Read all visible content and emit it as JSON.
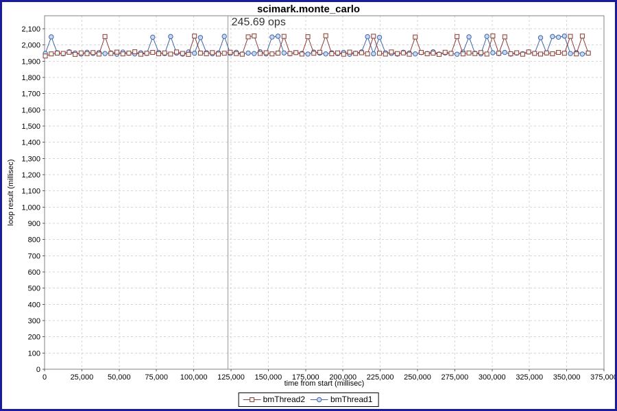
{
  "colors": {
    "frame_border": "#1b1b9e",
    "plot_border": "#808080",
    "grid": "#d6d6d6",
    "tick": "#555555",
    "annotation_line": "#999999",
    "text": "#000000"
  },
  "chart_data": {
    "type": "line",
    "title": "scimark.monte_carlo",
    "xlabel": "time from start (millisec)",
    "ylabel": "loop result (millisec)",
    "xlim": [
      0,
      375000
    ],
    "ylim": [
      0,
      2100
    ],
    "grid": true,
    "legend_position": "bottom",
    "annotation": {
      "text": "245.69 ops",
      "x": 123000
    },
    "x_ticks": {
      "values": [
        0,
        25000,
        50000,
        75000,
        100000,
        125000,
        150000,
        175000,
        200000,
        225000,
        250000,
        275000,
        300000,
        325000,
        350000,
        375000
      ],
      "labels": [
        "0",
        "25,000",
        "50,000",
        "75,000",
        "100,000",
        "125,000",
        "150,000",
        "175,000",
        "200,000",
        "225,000",
        "250,000",
        "275,000",
        "300,000",
        "325,000",
        "350,000",
        "375,000"
      ]
    },
    "y_ticks": {
      "values": [
        0,
        100,
        200,
        300,
        400,
        500,
        600,
        700,
        800,
        900,
        1000,
        1100,
        1200,
        1300,
        1400,
        1500,
        1600,
        1700,
        1800,
        1900,
        2000,
        2100
      ],
      "labels": [
        "0",
        "100",
        "200",
        "300",
        "400",
        "500",
        "600",
        "700",
        "800",
        "900",
        "1,000",
        "1,100",
        "1,200",
        "1,300",
        "1,400",
        "1,500",
        "1,600",
        "1,700",
        "1,800",
        "1,900",
        "2,000",
        "2,100"
      ]
    },
    "x": [
      500,
      4500,
      8500,
      12500,
      16500,
      20500,
      24500,
      28500,
      32500,
      36500,
      40500,
      44500,
      48500,
      52500,
      56500,
      60500,
      64500,
      68500,
      72500,
      76500,
      80500,
      84500,
      88500,
      92500,
      96500,
      100500,
      104500,
      108500,
      112500,
      116500,
      120500,
      124500,
      128500,
      132500,
      136500,
      140500,
      144500,
      148500,
      152500,
      156500,
      160500,
      164500,
      168500,
      172500,
      176500,
      180500,
      184500,
      188500,
      192500,
      196500,
      200500,
      204500,
      208500,
      212500,
      216500,
      220500,
      224500,
      228500,
      232500,
      236500,
      240500,
      244500,
      248500,
      252500,
      256500,
      260500,
      264500,
      268500,
      272500,
      276500,
      280500,
      284500,
      288500,
      292500,
      296500,
      300500,
      304500,
      308500,
      312500,
      316500,
      320500,
      324500,
      328500,
      332500,
      336500,
      340500,
      344500,
      348500,
      352500,
      356500,
      360500,
      364500
    ],
    "series": [
      {
        "name": "bmThread2",
        "marker": "square",
        "color": "#8e3b3b",
        "marker_fill": "#edf7ee",
        "values": [
          1932,
          1945,
          1950,
          1948,
          1955,
          1942,
          1951,
          1947,
          1953,
          1944,
          2052,
          1948,
          1956,
          1945,
          1950,
          1958,
          1943,
          1949,
          1954,
          1946,
          1951,
          1944,
          1957,
          1948,
          1942,
          2055,
          1950,
          1946,
          1953,
          1944,
          1949,
          1955,
          1947,
          1943,
          2050,
          2056,
          1948,
          1952,
          1945,
          1950,
          2053,
          1947,
          1953,
          1944,
          2051,
          1949,
          1955,
          2057,
          1946,
          1951,
          1943,
          1956,
          1948,
          1952,
          1945,
          2054,
          1949,
          1944,
          1957,
          1947,
          1951,
          1943,
          2049,
          1954,
          1946,
          1950,
          1942,
          1955,
          1948,
          2052,
          1945,
          1951,
          1947,
          1953,
          1944,
          2056,
          1949,
          2050,
          1946,
          1952,
          1943,
          1957,
          1948,
          1944,
          1951,
          1946,
          1954,
          1949,
          2053,
          1945,
          2055,
          1950
        ]
      },
      {
        "name": "bmThread1",
        "marker": "circle",
        "color": "#4263a8",
        "marker_fill": "#c5d9ef",
        "values": [
          1948,
          2050,
          1952,
          1946,
          1958,
          1950,
          1944,
          1955,
          1948,
          1953,
          1947,
          1951,
          1943,
          1956,
          1949,
          1945,
          1952,
          1948,
          2048,
          1954,
          1947,
          2052,
          1950,
          1944,
          1957,
          1949,
          2046,
          1953,
          1946,
          1951,
          2053,
          1948,
          1955,
          1944,
          1950,
          1947,
          1958,
          1945,
          2049,
          2054,
          1951,
          1946,
          1953,
          1948,
          1944,
          1956,
          1950,
          1945,
          1952,
          1947,
          1954,
          1943,
          1949,
          1957,
          2051,
          1946,
          2047,
          1952,
          1948,
          1944,
          1955,
          1950,
          1945,
          1953,
          1947,
          1958,
          1944,
          1951,
          1948,
          1943,
          1956,
          2050,
          1949,
          1945,
          2053,
          1952,
          1947,
          1954,
          1944,
          1950,
          1946,
          1957,
          1948,
          2045,
          1951,
          2052,
          2048,
          2055,
          1947,
          1953,
          1944,
          1950
        ]
      }
    ]
  }
}
